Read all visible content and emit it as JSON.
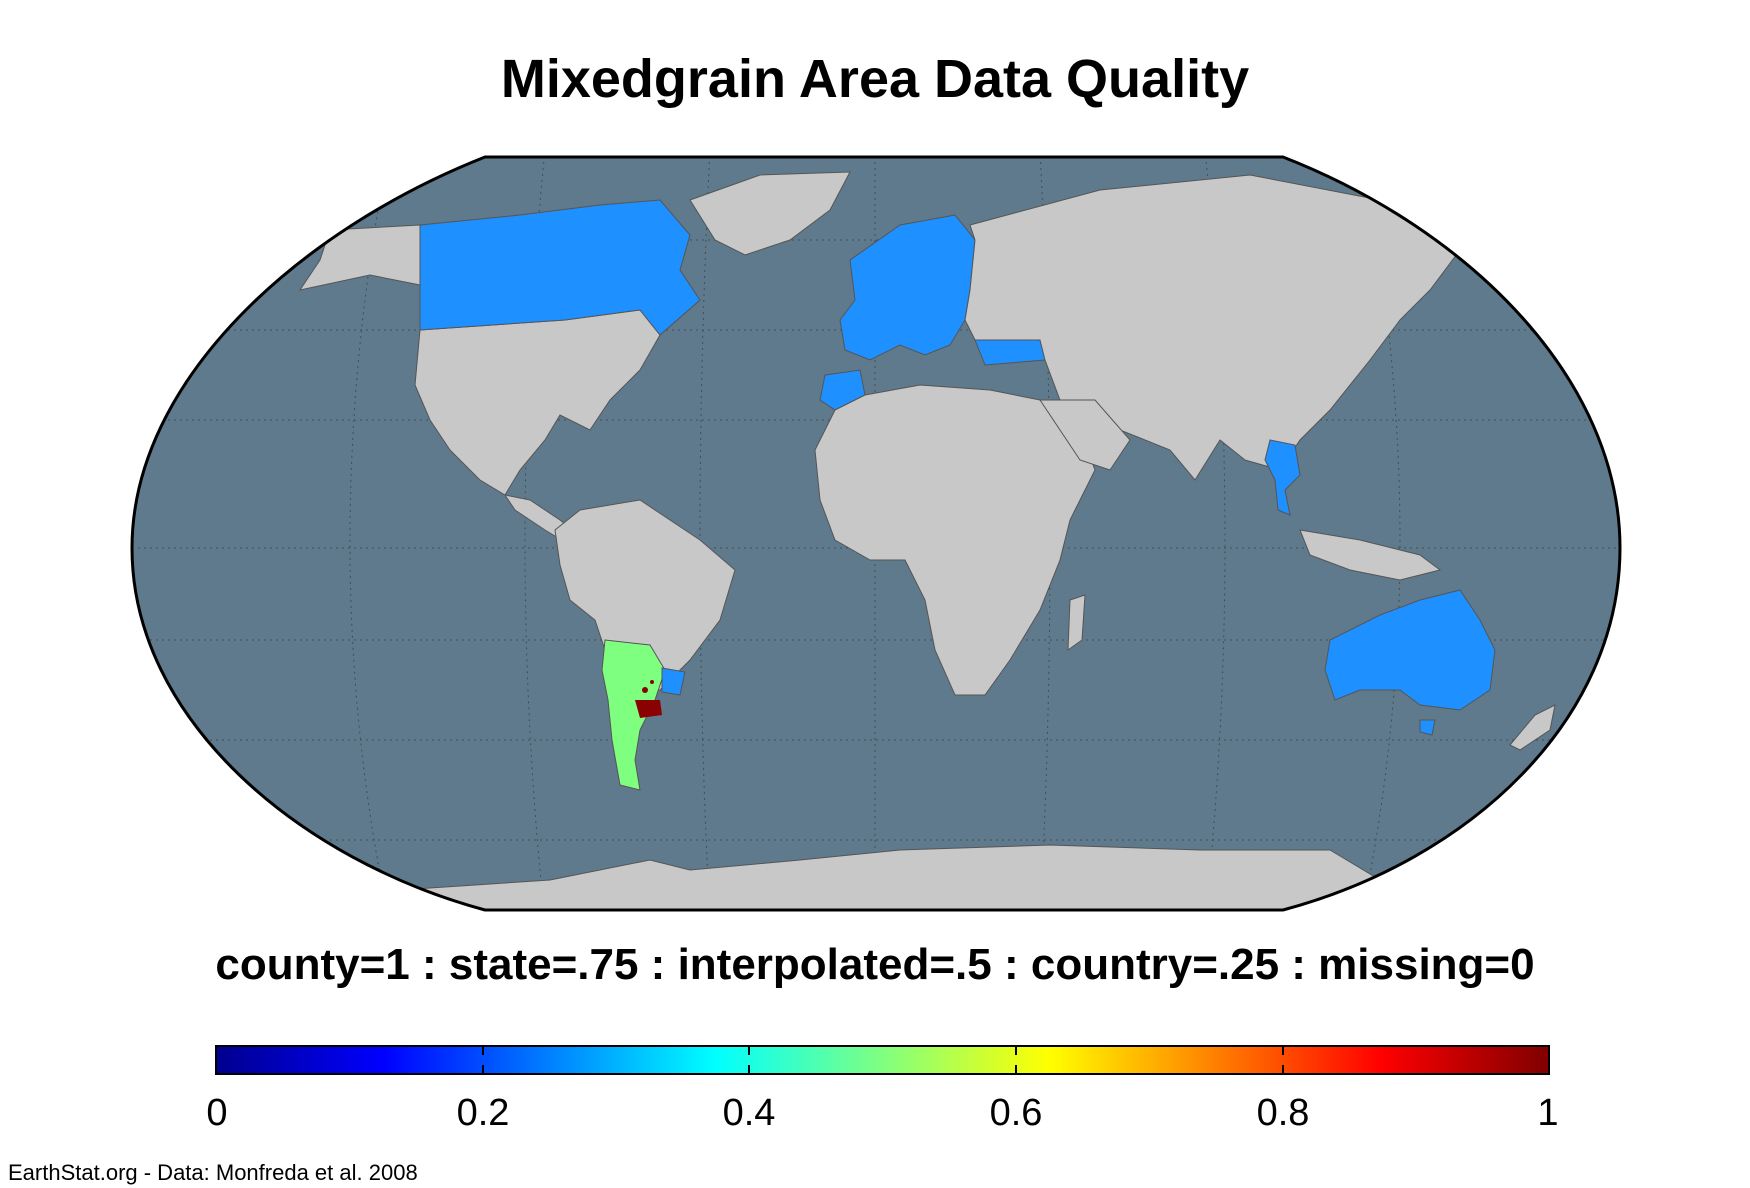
{
  "title": "Mixedgrain Area Data Quality",
  "legend": {
    "label": "county=1 : state=.75 : interpolated=.5 : country=.25 : missing=0",
    "ticks": [
      "0",
      "0.2",
      "0.4",
      "0.6",
      "0.8",
      "1"
    ],
    "range": [
      0,
      1
    ],
    "colormap": "jet"
  },
  "credit": "EarthStat.org - Data: Monfreda et al. 2008",
  "map": {
    "projection": "Robinson",
    "ocean_color": "#5f7a8c",
    "land_color": "#c8c8c8",
    "category_colors": {
      "country": "#1e90ff",
      "interpolated": "#7fff7f",
      "county": "#8b0000"
    },
    "regions": [
      {
        "name": "Canada",
        "value": 0.25
      },
      {
        "name": "Europe",
        "value": 0.25
      },
      {
        "name": "Turkey",
        "value": 0.25
      },
      {
        "name": "Morocco",
        "value": 0.25
      },
      {
        "name": "Thailand",
        "value": 0.25
      },
      {
        "name": "Australia",
        "value": 0.25
      },
      {
        "name": "Uruguay",
        "value": 0.25
      },
      {
        "name": "Argentina",
        "value": 0.5
      },
      {
        "name": "Buenos Aires area",
        "value": 1
      }
    ]
  }
}
